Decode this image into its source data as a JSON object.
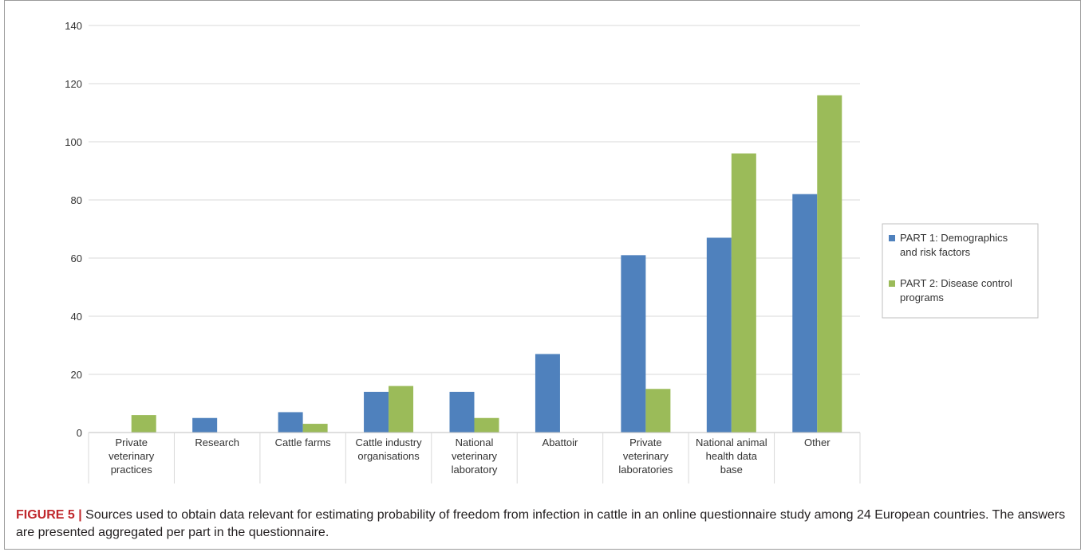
{
  "chart_data": {
    "type": "bar",
    "categories": [
      [
        "Private",
        "veterinary",
        "practices"
      ],
      [
        "Research"
      ],
      [
        "Cattle farms"
      ],
      [
        "Cattle industry",
        "organisations"
      ],
      [
        "National",
        "veterinary",
        "laboratory"
      ],
      [
        "Abattoir"
      ],
      [
        "Private",
        "veterinary",
        "laboratories"
      ],
      [
        "National animal",
        "health data",
        "base"
      ],
      [
        "Other"
      ]
    ],
    "series": [
      {
        "name": [
          "PART 1: Demographics",
          "and risk factors"
        ],
        "color": "#4f81bd",
        "values": [
          0,
          5,
          7,
          14,
          14,
          27,
          61,
          67,
          82
        ]
      },
      {
        "name": [
          "PART 2: Disease control",
          "programs"
        ],
        "color": "#9bbb59",
        "values": [
          6,
          0,
          3,
          16,
          5,
          0,
          15,
          96,
          116
        ]
      }
    ],
    "ylim": [
      0,
      140
    ],
    "yticks": [
      0,
      20,
      40,
      60,
      80,
      100,
      120,
      140
    ],
    "grid": true,
    "legend_position": "right"
  },
  "caption": {
    "label": "FIGURE 5 |",
    "text": " Sources used to obtain data relevant for estimating probability of freedom from infection in cattle in an online questionnaire study among 24 European countries. The answers are presented aggregated per part in the questionnaire."
  }
}
